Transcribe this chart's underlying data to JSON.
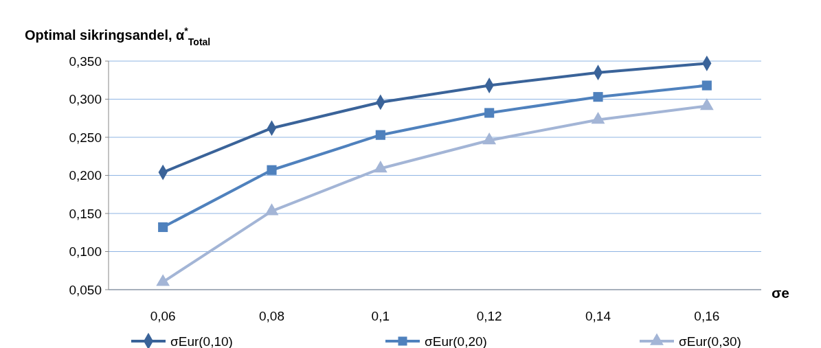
{
  "chart_data": {
    "type": "line",
    "ylabel": "Optimal sikringsandel, α$^{*}$$_{Total}$",
    "xlabel": "σe",
    "categories": [
      "0,06",
      "0,08",
      "0,1",
      "0,12",
      "0,14",
      "0,16"
    ],
    "series": [
      {
        "name": "σEur(0,10)",
        "color": "#3a6399",
        "marker": "diamond",
        "values": [
          0.204,
          0.262,
          0.296,
          0.318,
          0.335,
          0.347
        ]
      },
      {
        "name": "σEur(0,20)",
        "color": "#4f81bd",
        "marker": "square",
        "values": [
          0.132,
          0.207,
          0.253,
          0.282,
          0.303,
          0.318
        ]
      },
      {
        "name": "σEur(0,30)",
        "color": "#a3b5d6",
        "marker": "triangle",
        "values": [
          0.06,
          0.153,
          0.209,
          0.246,
          0.273,
          0.291
        ]
      }
    ],
    "ylim": [
      0.05,
      0.35
    ],
    "yticks": [
      {
        "value": 0.05,
        "label": "0,050"
      },
      {
        "value": 0.1,
        "label": "0,100"
      },
      {
        "value": 0.15,
        "label": "0,150"
      },
      {
        "value": 0.2,
        "label": "0,200"
      },
      {
        "value": 0.25,
        "label": "0,250"
      },
      {
        "value": 0.3,
        "label": "0,300"
      },
      {
        "value": 0.35,
        "label": "0,350"
      }
    ],
    "grid": "y",
    "legend": "bottom",
    "line_style": "solid"
  }
}
